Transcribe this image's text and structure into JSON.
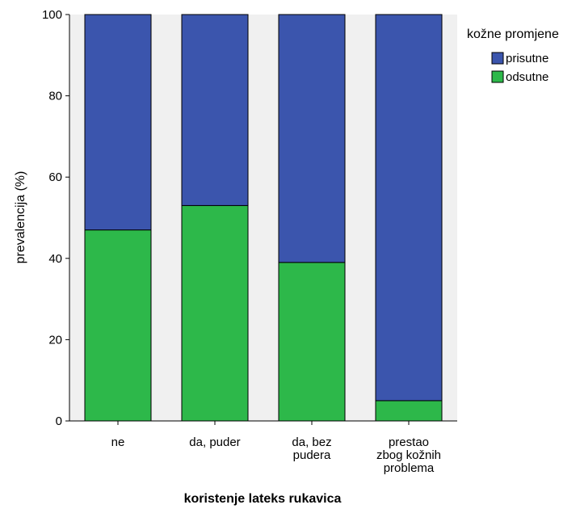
{
  "chart_data": {
    "type": "bar",
    "stacked": true,
    "percent": true,
    "categories": [
      "ne",
      "da, puder",
      "da, bez pudera",
      "prestao zbog kožnih problema"
    ],
    "category_labels": [
      [
        "ne"
      ],
      [
        "da, puder"
      ],
      [
        "da, bez",
        "pudera"
      ],
      [
        "prestao",
        "zbog kožnih",
        "problema"
      ]
    ],
    "series": [
      {
        "name": "odsutne",
        "color": "#2db84a",
        "values": [
          47,
          53,
          39,
          5
        ]
      },
      {
        "name": "prisutne",
        "color": "#3b55ad",
        "values": [
          53,
          47,
          61,
          95
        ]
      }
    ],
    "xlabel": "koristenje lateks rukavica",
    "ylabel": "prevalencija (%)",
    "ylim": [
      0,
      100
    ],
    "yticks": [
      0,
      20,
      40,
      60,
      80,
      100
    ],
    "legend": {
      "title": "kožne promjene",
      "position": "top-right",
      "items": [
        {
          "label": "prisutne",
          "color": "#3b55ad"
        },
        {
          "label": "odsutne",
          "color": "#2db84a"
        }
      ]
    },
    "plot_background": "#f0f0f0",
    "grid": false
  }
}
